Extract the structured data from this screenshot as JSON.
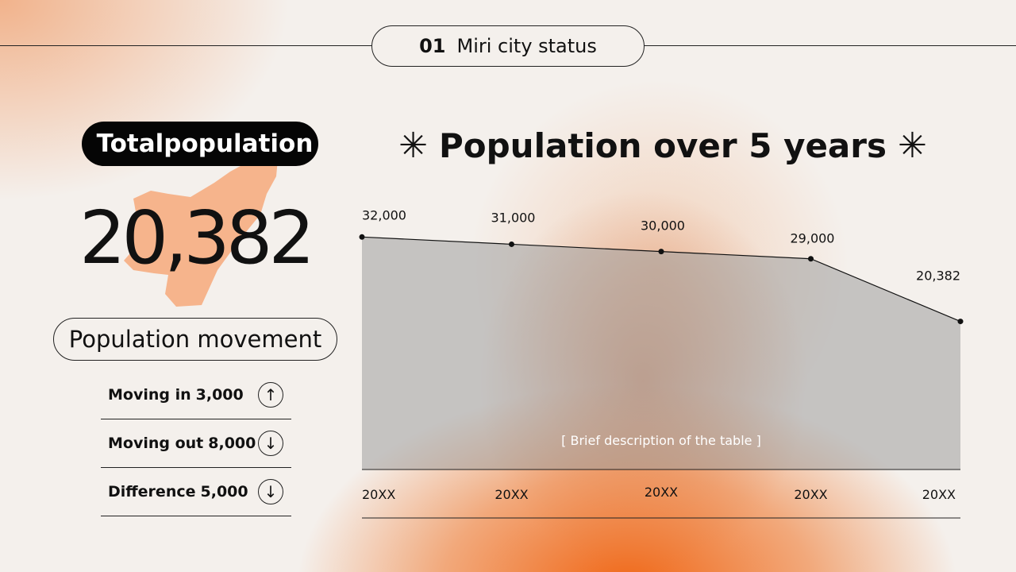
{
  "header": {
    "number": "01",
    "title": "Miri city status"
  },
  "summary": {
    "badge": "Totalpopulation",
    "value": "20,382",
    "movement_title": "Population movement",
    "rows": [
      {
        "label": "Moving in",
        "value": "3,000",
        "arrow": "↑",
        "icon": "arrow-up-icon"
      },
      {
        "label": "Moving out",
        "value": "8,000",
        "arrow": "↓",
        "icon": "arrow-down-icon"
      },
      {
        "label": "Difference",
        "value": "5,000",
        "arrow": "↓",
        "icon": "arrow-down-icon"
      }
    ]
  },
  "chart_title": {
    "left_symbol": "✳",
    "text": "Population  over 5 years",
    "right_symbol": "✳"
  },
  "chart_data": {
    "type": "area",
    "categories": [
      "20XX",
      "20XX",
      "20XX",
      "20XX",
      "20XX"
    ],
    "series": [
      {
        "values": [
          32000,
          31000,
          30000,
          29000,
          20382
        ]
      }
    ],
    "data_labels": [
      "32,000",
      "31,000",
      "30,000",
      "29,000",
      "20,382"
    ],
    "annotation": "[ Brief description of the table ]",
    "ylim": [
      0,
      34000
    ],
    "grid": false,
    "colors": {
      "area": "#9e9e9e",
      "line": "#111111"
    }
  },
  "colors": {
    "accent": "#f07a2a",
    "map": "#f6b48c",
    "dark": "#050505"
  }
}
